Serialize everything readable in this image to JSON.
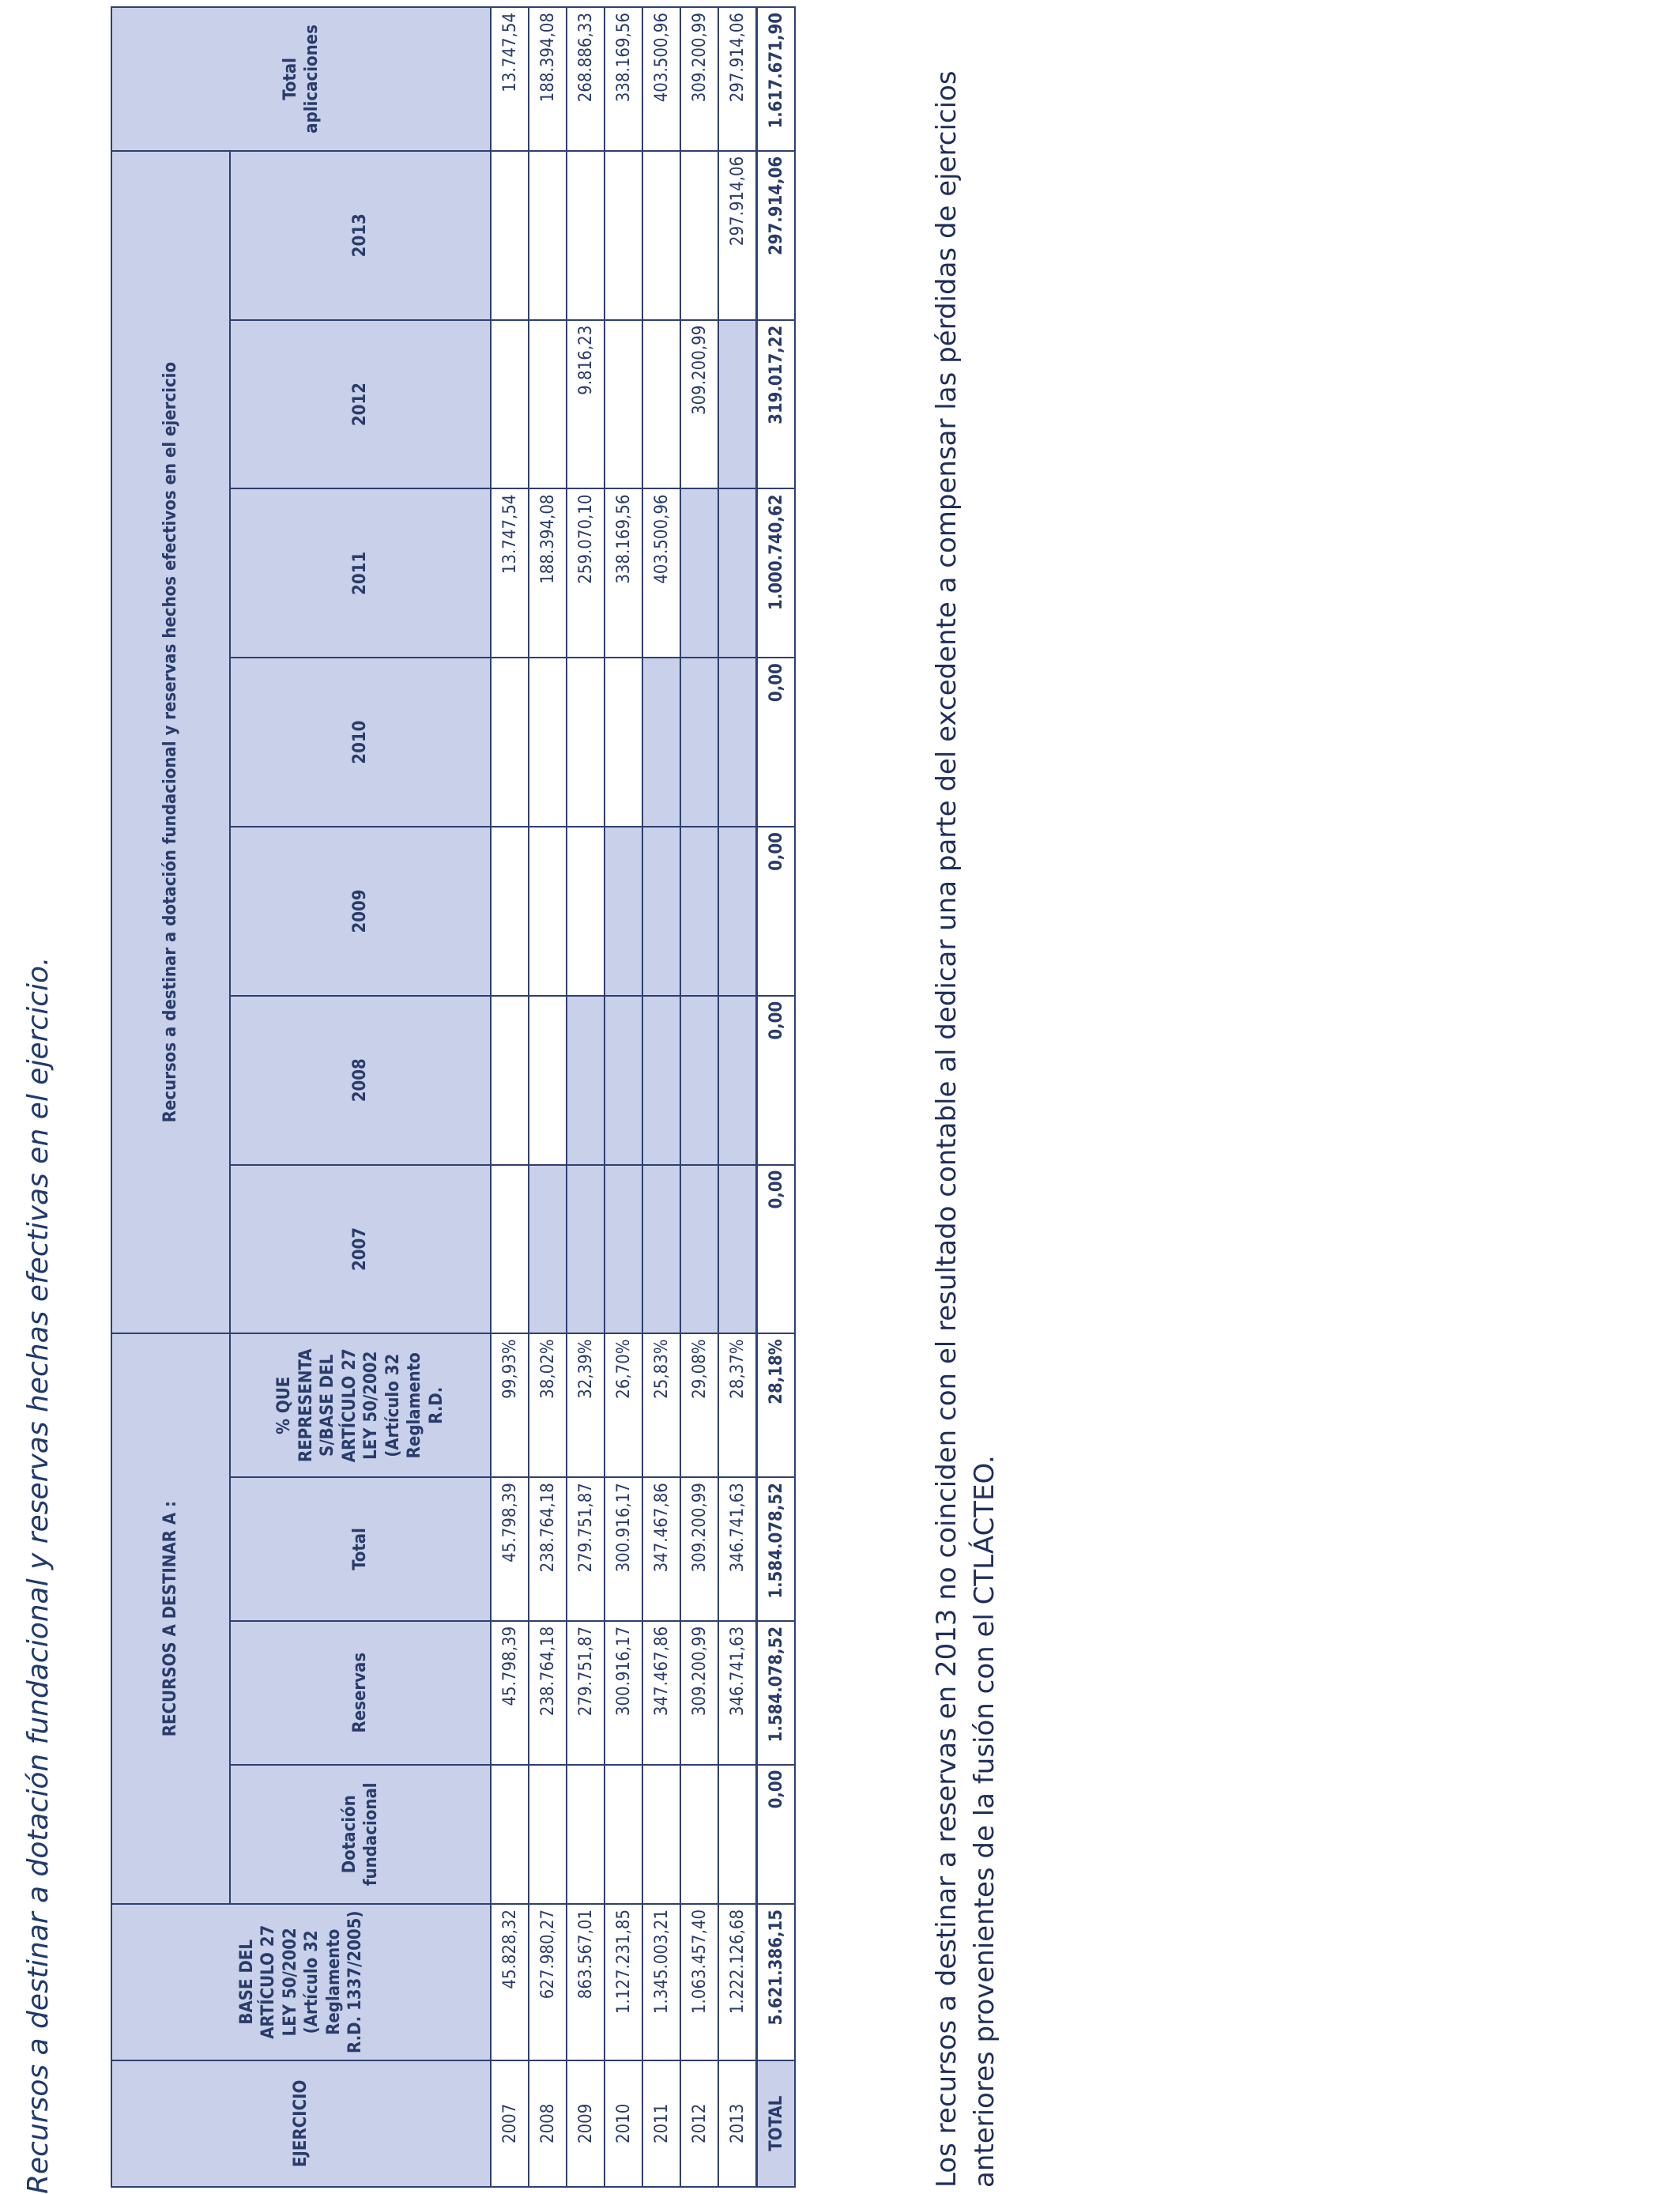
{
  "title": "Recursos a destinar a dotación fundacional y reservas hechas efectivas en el ejercicio.",
  "headers": {
    "ejercicio": "EJERCICIO",
    "base": "BASE DEL ARTÍCULO 27 LEY 50/2002 (Artículo 32 Reglamento R.D. 1337/2005)",
    "recursos_group": "RECURSOS  A DESTINAR A :",
    "dotacion": "Dotación fundacional",
    "reservas": "Reservas",
    "total": "Total",
    "porcentaje": "% QUE REPRESENTA S/BASE DEL ARTÍCULO 27 LEY 50/2002 (Artículo 32 Reglamento R.D.",
    "efectivos_group": "Recursos a destinar a dotación fundacional y reservas hechos efectivos en el ejercicio",
    "years": [
      "2007",
      "2008",
      "2009",
      "2010",
      "2011",
      "2012",
      "2013"
    ],
    "total_aplicaciones": "Total aplicaciones"
  },
  "rows": [
    {
      "ejercicio": "2007",
      "base": "45.828,32",
      "dotacion": "",
      "reservas": "45.798,39",
      "total": "45.798,39",
      "pct": "99,93%",
      "y2007": "",
      "y2008": "",
      "y2009": "",
      "y2010": "",
      "y2011": "13.747,54",
      "y2012": "",
      "y2013": "",
      "total_apl": "13.747,54"
    },
    {
      "ejercicio": "2008",
      "base": "627.980,27",
      "dotacion": "",
      "reservas": "238.764,18",
      "total": "238.764,18",
      "pct": "38,02%",
      "y2007": "",
      "y2008": "",
      "y2009": "",
      "y2010": "",
      "y2011": "188.394,08",
      "y2012": "",
      "y2013": "",
      "total_apl": "188.394,08"
    },
    {
      "ejercicio": "2009",
      "base": "863.567,01",
      "dotacion": "",
      "reservas": "279.751,87",
      "total": "279.751,87",
      "pct": "32,39%",
      "y2007": "",
      "y2008": "",
      "y2009": "",
      "y2010": "",
      "y2011": "259.070,10",
      "y2012": "9.816,23",
      "y2013": "",
      "total_apl": "268.886,33"
    },
    {
      "ejercicio": "2010",
      "base": "1.127.231,85",
      "dotacion": "",
      "reservas": "300.916,17",
      "total": "300.916,17",
      "pct": "26,70%",
      "y2007": "",
      "y2008": "",
      "y2009": "",
      "y2010": "",
      "y2011": "338.169,56",
      "y2012": "",
      "y2013": "",
      "total_apl": "338.169,56"
    },
    {
      "ejercicio": "2011",
      "base": "1.345.003,21",
      "dotacion": "",
      "reservas": "347.467,86",
      "total": "347.467,86",
      "pct": "25,83%",
      "y2007": "",
      "y2008": "",
      "y2009": "",
      "y2010": "",
      "y2011": "403.500,96",
      "y2012": "",
      "y2013": "",
      "total_apl": "403.500,96"
    },
    {
      "ejercicio": "2012",
      "base": "1.063.457,40",
      "dotacion": "",
      "reservas": "309.200,99",
      "total": "309.200,99",
      "pct": "29,08%",
      "y2007": "",
      "y2008": "",
      "y2009": "",
      "y2010": "",
      "y2011": "",
      "y2012": "309.200,99",
      "y2013": "",
      "total_apl": "309.200,99"
    },
    {
      "ejercicio": "2013",
      "base": "1.222.126,68",
      "dotacion": "",
      "reservas": "346.741,63",
      "total": "346.741,63",
      "pct": "28,37%",
      "y2007": "",
      "y2008": "",
      "y2009": "",
      "y2010": "",
      "y2011": "",
      "y2012": "",
      "y2013": "297.914,06",
      "total_apl": "297.914,06"
    }
  ],
  "totals": {
    "ejercicio": "TOTAL",
    "base": "5.621.386,15",
    "dotacion": "0,00",
    "reservas": "1.584.078,52",
    "total": "1.584.078,52",
    "pct": "28,18%",
    "y2007": "0,00",
    "y2008": "0,00",
    "y2009": "0,00",
    "y2010": "0,00",
    "y2011": "1.000.740,62",
    "y2012": "319.017,22",
    "y2013": "297.914,06",
    "total_apl": "1.617.671,90"
  },
  "note": "Los recursos a destinar a reservas en 2013 no coinciden con el resultado contable al dedicar una parte del excedente a compensar las pérdidas de ejercicios anteriores provenientes de la fusión con el CTLÁCTEO.",
  "colors": {
    "header_fill": "#c8d1e9",
    "border": "#2f3f70",
    "text": "#2a3b6b"
  }
}
